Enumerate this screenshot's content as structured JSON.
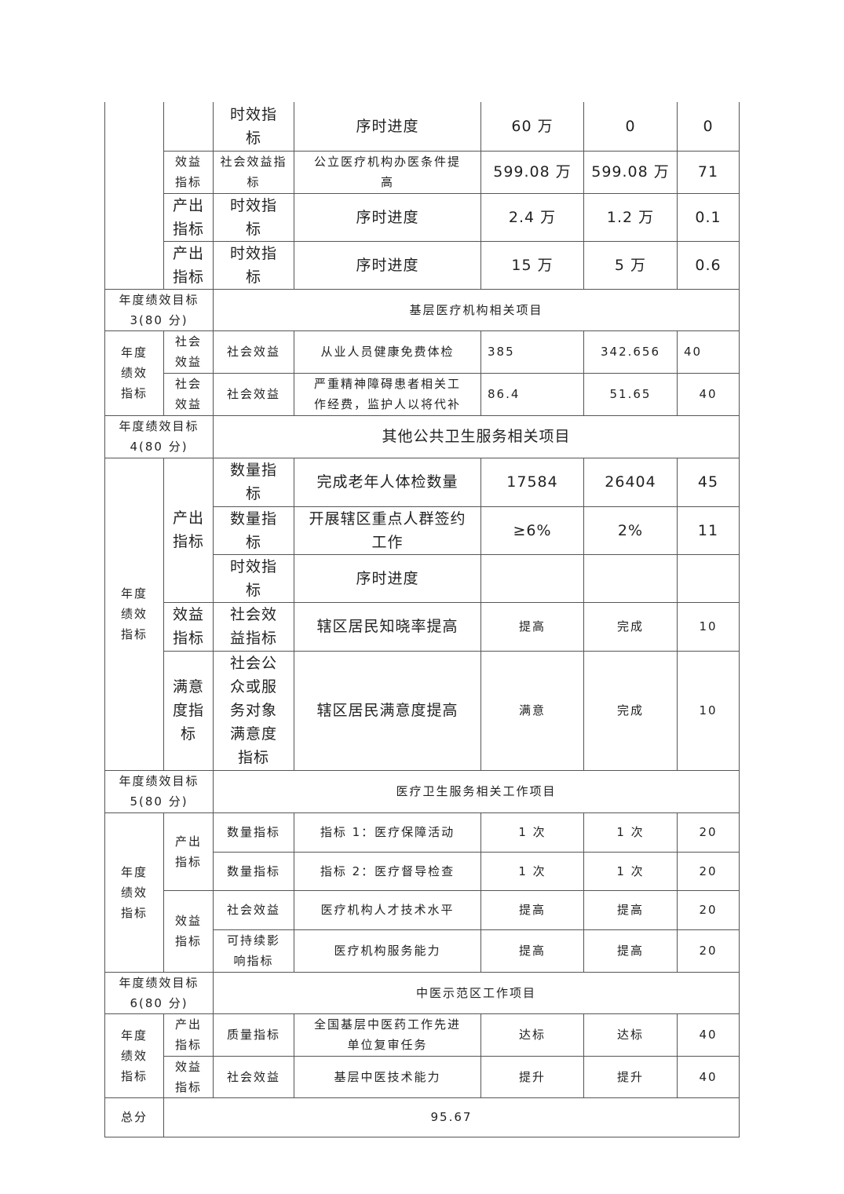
{
  "rows": [
    [
      "",
      "",
      "时效指\n标",
      "序时进度",
      "60 万",
      "0",
      "0"
    ],
    [
      "效益\n指标",
      "社会效益指\n标",
      "公立医疗机构办医条件提\n高",
      "599.08 万",
      "599.08 万",
      "71"
    ],
    [
      "产出\n指标",
      "时效指\n标",
      "序时进度",
      "2.4 万",
      "1.2 万",
      "0.1"
    ],
    [
      "产出\n指标",
      "时效指\n标",
      "序时进度",
      "15 万",
      "5 万",
      "0.6"
    ],
    [
      "年度绩效目标\n3(80 分)",
      "基层医疗机构相关项目"
    ],
    [
      "年度\n绩效\n指标",
      "社会\n效益",
      "社会效益",
      "从业人员健康免费体检",
      "385",
      "342.656",
      "40"
    ],
    [
      "社会\n效益",
      "社会效益",
      "严重精神障碍患者相关工\n作经费，监护人以将代补",
      "86.4",
      "51.65",
      "40"
    ],
    [
      "年度绩效目标\n4(80 分)",
      "其他公共卫生服务相关项目"
    ],
    [
      "年度\n绩效\n指标",
      "产出\n指标",
      "数量指\n标",
      "完成老年人体检数量",
      "17584",
      "26404",
      "45"
    ],
    [
      "数量指\n标",
      "开展辖区重点人群签约\n工作",
      "≥6%",
      "2%",
      "11"
    ],
    [
      "时效指\n标",
      "序时进度",
      "",
      "",
      ""
    ],
    [
      "效益\n指标",
      "社会效\n益指标",
      "辖区居民知晓率提高",
      "提高",
      "完成",
      "10"
    ],
    [
      "满意\n度指\n标",
      "社会公\n众或服\n务对象\n满意度\n指标",
      "辖区居民满意度提高",
      "满意",
      "完成",
      "10"
    ],
    [
      "年度绩效目标\n5(80 分)",
      "医疗卫生服务相关工作项目"
    ],
    [
      "年度\n绩效\n指标",
      "产出\n指标",
      "数量指标",
      "指标 1：医疗保障活动",
      "1 次",
      "1 次",
      "20"
    ],
    [
      "数量指标",
      "指标 2：医疗督导检查",
      "1 次",
      "1 次",
      "20"
    ],
    [
      "效益\n指标",
      "社会效益",
      "医疗机构人才技术水平",
      "提高",
      "提高",
      "20"
    ],
    [
      "可持续影\n响指标",
      "医疗机构服务能力",
      "提高",
      "提高",
      "20"
    ],
    [
      "年度绩效目标\n6(80 分)",
      "中医示范区工作项目"
    ],
    [
      "年度\n绩效\n指标",
      "产出\n指标",
      "质量指标",
      "全国基层中医药工作先进\n单位复审任务",
      "达标",
      "达标",
      "40"
    ],
    [
      "效益\n指标",
      "社会效益",
      "基层中医技术能力",
      "提升",
      "提升",
      "40"
    ],
    [
      "总分",
      "95.67"
    ]
  ]
}
